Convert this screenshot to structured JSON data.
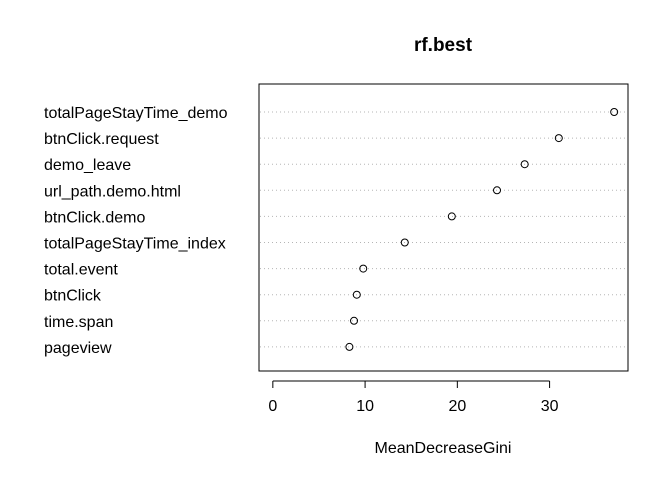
{
  "chart_data": {
    "type": "scatter",
    "title": "rf.best",
    "xlabel": "MeanDecreaseGini",
    "ylabel": "",
    "xlim": [
      -1.5,
      38.5
    ],
    "xticks": [
      0,
      10,
      20,
      30
    ],
    "grid": "horizontal-dotted",
    "points": [
      {
        "label": "totalPageStayTime_demo",
        "value": 37.0
      },
      {
        "label": "btnClick.request",
        "value": 31.0
      },
      {
        "label": "demo_leave",
        "value": 27.3
      },
      {
        "label": "url_path.demo.html",
        "value": 24.3
      },
      {
        "label": "btnClick.demo",
        "value": 19.4
      },
      {
        "label": "totalPageStayTime_index",
        "value": 14.3
      },
      {
        "label": "total.event",
        "value": 9.8
      },
      {
        "label": "btnClick",
        "value": 9.1
      },
      {
        "label": "time.span",
        "value": 8.8
      },
      {
        "label": "pageview",
        "value": 8.3
      }
    ]
  }
}
